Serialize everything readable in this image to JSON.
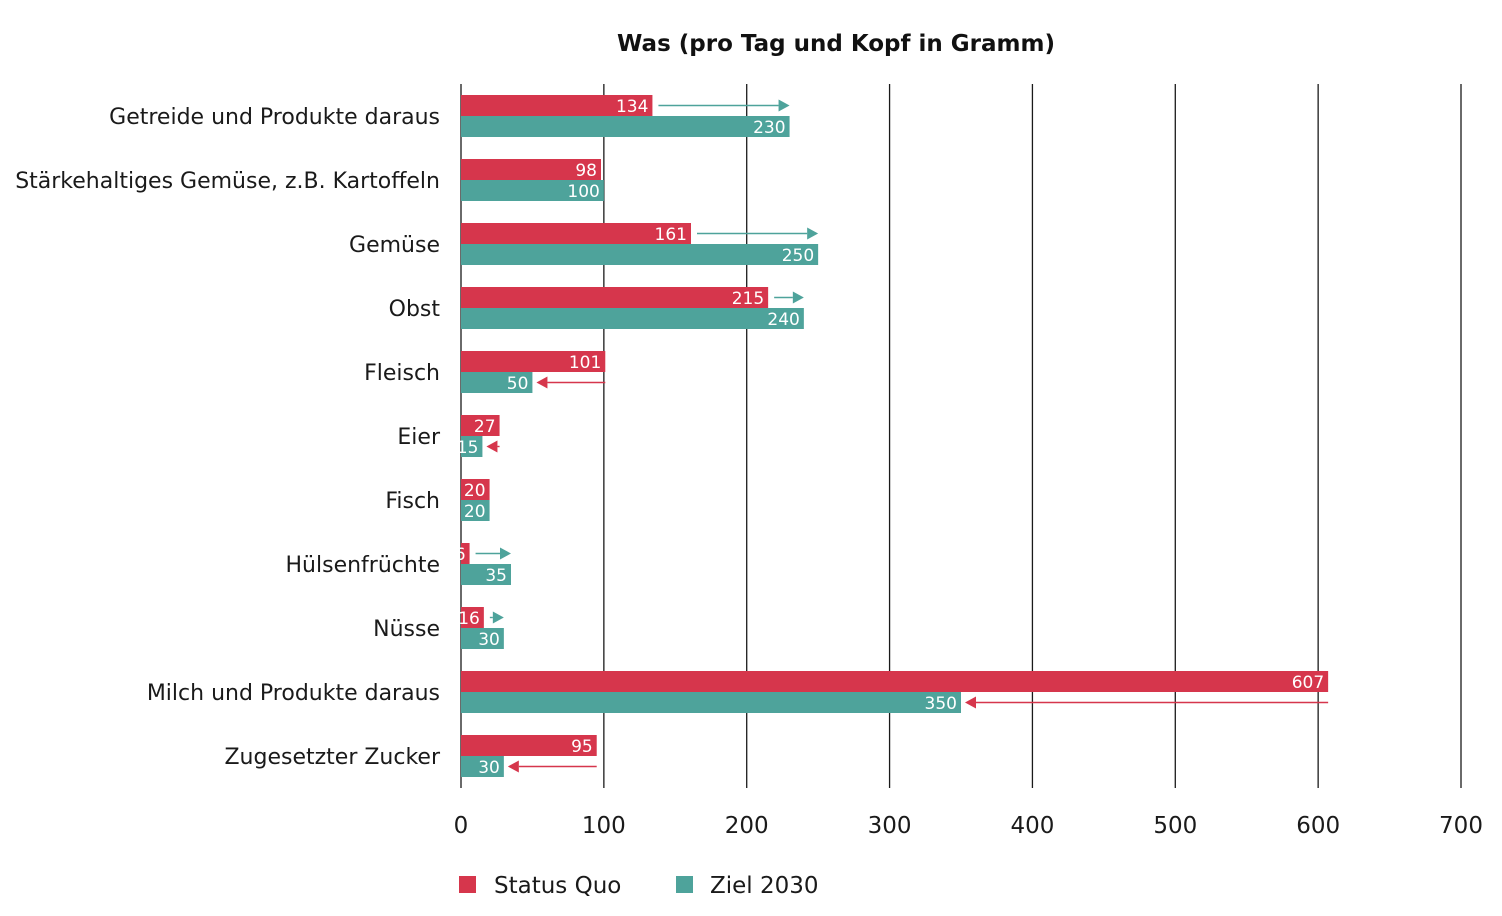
{
  "chart_data": {
    "type": "bar",
    "orientation": "horizontal",
    "title": "Was (pro Tag und Kopf in Gramm)",
    "xlabel": "",
    "ylabel": "",
    "xlim": [
      0,
      700
    ],
    "xticks": [
      "0",
      "100",
      "200",
      "300",
      "400",
      "500",
      "600",
      "700"
    ],
    "grid": "vertical",
    "legend_position": "bottom",
    "categories": [
      "Getreide und Produkte daraus",
      "Stärkehaltiges Gemüse, z.B. Kartoffeln",
      "Gemüse",
      "Obst",
      "Fleisch",
      "Eier",
      "Fisch",
      "Hülsenfrüchte",
      "Nüsse",
      "Milch und Produkte daraus",
      "Zugesetzter Zucker"
    ],
    "series": [
      {
        "name": "Status Quo",
        "color": "#d6364c",
        "values": [
          134,
          98,
          161,
          215,
          101,
          27,
          20,
          6,
          16,
          607,
          95
        ]
      },
      {
        "name": "Ziel 2030",
        "color": "#4ea39b",
        "values": [
          230,
          100,
          250,
          240,
          50,
          15,
          20,
          35,
          30,
          350,
          30
        ]
      }
    ],
    "annotations": "Arrows from Status Quo value toward Ziel 2030 value (teal when increasing, red when decreasing)"
  }
}
